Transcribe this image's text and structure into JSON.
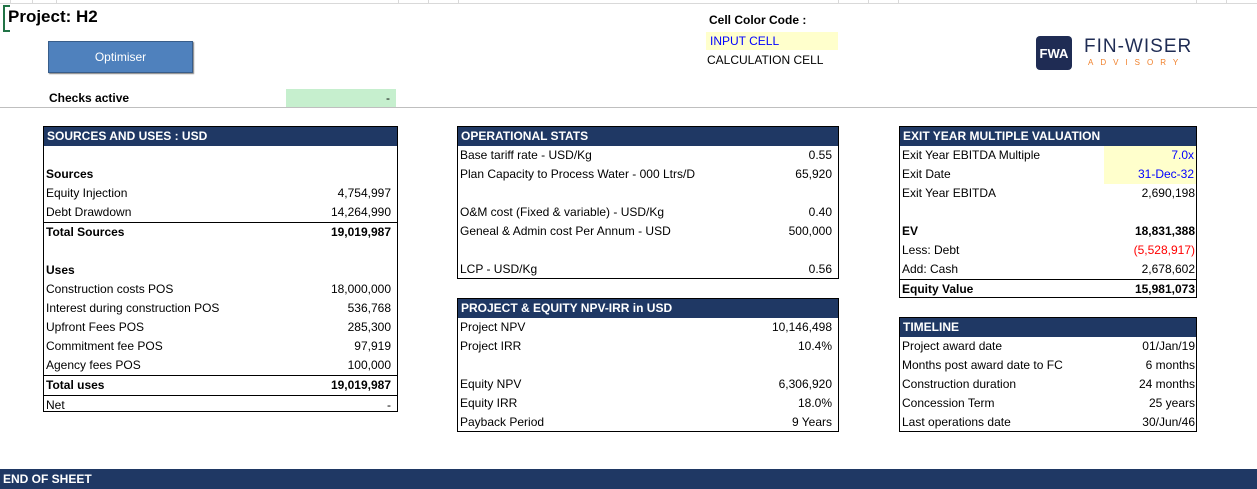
{
  "project_title": "Project: H2",
  "optimiser_label": "Optimiser",
  "checks": {
    "label": "Checks active",
    "value": "-"
  },
  "legend": {
    "title": "Cell Color Code :",
    "input": "INPUT CELL",
    "calc": "CALCULATION CELL"
  },
  "logo": {
    "badge": "FWA",
    "name": "FIN-WISER",
    "sub": "ADVISORY"
  },
  "sources_uses": {
    "title": "SOURCES AND USES : USD",
    "sources_heading": "Sources",
    "sources": [
      {
        "label": "Equity Injection",
        "value": "4,754,997"
      },
      {
        "label": "Debt Drawdown",
        "value": "14,264,990"
      }
    ],
    "total_sources": {
      "label": "Total Sources",
      "value": "19,019,987"
    },
    "uses_heading": "Uses",
    "uses": [
      {
        "label": "Construction costs POS",
        "value": "18,000,000"
      },
      {
        "label": "Interest during construction POS",
        "value": "536,768"
      },
      {
        "label": "Upfront Fees  POS",
        "value": "285,300"
      },
      {
        "label": "Commitment fee POS",
        "value": "97,919"
      },
      {
        "label": "Agency fees  POS",
        "value": "100,000"
      }
    ],
    "total_uses": {
      "label": "Total uses",
      "value": "19,019,987"
    },
    "net": {
      "label": "Net",
      "value": "-"
    }
  },
  "operational": {
    "title": "OPERATIONAL STATS",
    "rows": [
      {
        "label": "Base tariff rate - USD/Kg",
        "value": "0.55"
      },
      {
        "label": "Plan Capacity to Process Water - 000 Ltrs/D",
        "value": "65,920"
      },
      {
        "label": "O&M cost (Fixed & variable) - USD/Kg",
        "value": "0.40"
      },
      {
        "label": "Geneal & Admin cost Per Annum - USD",
        "value": "500,000"
      },
      {
        "label": "LCP - USD/Kg",
        "value": "0.56"
      }
    ]
  },
  "npv_irr": {
    "title": "PROJECT & EQUITY NPV-IRR in USD",
    "rows": [
      {
        "label": "Project NPV",
        "value": "10,146,498"
      },
      {
        "label": "Project IRR",
        "value": "10.4%"
      },
      {
        "label": "Equity NPV",
        "value": "6,306,920"
      },
      {
        "label": "Equity IRR",
        "value": "18.0%"
      },
      {
        "label": "Payback Period",
        "value": "9 Years"
      }
    ]
  },
  "exit_valuation": {
    "title": "EXIT YEAR MULTIPLE VALUATION",
    "multiple": {
      "label": "Exit Year EBITDA Multiple",
      "value": "7.0x"
    },
    "exit_date": {
      "label": "Exit Date",
      "value": "31-Dec-32"
    },
    "ebitda": {
      "label": "Exit Year EBITDA",
      "value": "2,690,198"
    },
    "ev": {
      "label": "EV",
      "value": "18,831,388"
    },
    "debt": {
      "label": "Less: Debt",
      "value": "(5,528,917)"
    },
    "cash": {
      "label": "Add: Cash",
      "value": "2,678,602"
    },
    "equity": {
      "label": "Equity Value",
      "value": "15,981,073"
    }
  },
  "timeline": {
    "title": "TIMELINE",
    "rows": [
      {
        "label": "Project award date",
        "value": "01/Jan/19"
      },
      {
        "label": "Months post award date to FC",
        "value": "6 months"
      },
      {
        "label": "Construction duration",
        "value": "24 months"
      },
      {
        "label": "Concession Term",
        "value": "25 years"
      },
      {
        "label": "Last operations date",
        "value": "30/Jun/46"
      }
    ]
  },
  "end_of_sheet": "END OF SHEET"
}
